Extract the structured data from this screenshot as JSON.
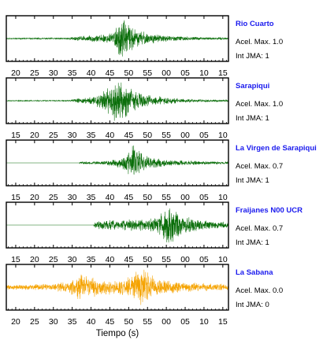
{
  "chart_data": {
    "type": "line",
    "xlabel": "Tiempo (s)",
    "colors": {
      "station_name": "#1a1aee",
      "trace_normal": "#0a6e0a",
      "trace_highlight": "#f5a300",
      "axis": "#000000"
    },
    "panels": [
      {
        "station": "Rio Cuarto",
        "acel_text": "Acel. Max. 1.0",
        "jma_text": "Int JMA: 1",
        "tick_labels": [
          "20",
          "25",
          "30",
          "35",
          "40",
          "45",
          "50",
          "55",
          "00",
          "05",
          "10",
          "15"
        ],
        "tick_seconds": [
          20,
          25,
          30,
          35,
          40,
          45,
          50,
          55,
          60,
          65,
          70,
          75
        ],
        "xlim": [
          17.5,
          76.5
        ],
        "color": "trace_normal",
        "envelope": [
          [
            17.5,
            0.03
          ],
          [
            33,
            0.04
          ],
          [
            37,
            0.12
          ],
          [
            42,
            0.18
          ],
          [
            46,
            0.35
          ],
          [
            47.3,
            0.95
          ],
          [
            48.2,
            1.0
          ],
          [
            49.5,
            0.75
          ],
          [
            52,
            0.45
          ],
          [
            56,
            0.25
          ],
          [
            60,
            0.15
          ],
          [
            66,
            0.09
          ],
          [
            76.5,
            0.05
          ]
        ],
        "seed": 11
      },
      {
        "station": "Sarapiqui",
        "acel_text": "Acel. Max. 1.0",
        "jma_text": "Int JMA: 1",
        "tick_labels": [
          "15",
          "20",
          "25",
          "30",
          "35",
          "40",
          "45",
          "50",
          "55",
          "00",
          "05",
          "10"
        ],
        "tick_seconds": [
          15,
          20,
          25,
          30,
          35,
          40,
          45,
          50,
          55,
          60,
          65,
          70
        ],
        "xlim": [
          12.5,
          71.5
        ],
        "color": "trace_normal",
        "envelope": [
          [
            12.5,
            0.02
          ],
          [
            29,
            0.03
          ],
          [
            31,
            0.1
          ],
          [
            35,
            0.2
          ],
          [
            39,
            0.55
          ],
          [
            41,
            1.0
          ],
          [
            43.5,
            0.95
          ],
          [
            46,
            0.55
          ],
          [
            50,
            0.3
          ],
          [
            55,
            0.18
          ],
          [
            60,
            0.1
          ],
          [
            66,
            0.07
          ],
          [
            71.5,
            0.05
          ]
        ],
        "seed": 23
      },
      {
        "station": "La Virgen de Sarapiqui",
        "acel_text": "Acel. Max. 0.7",
        "jma_text": "Int JMA: 1",
        "tick_labels": [
          "15",
          "20",
          "25",
          "30",
          "35",
          "40",
          "45",
          "50",
          "55",
          "00",
          "05",
          "10"
        ],
        "tick_seconds": [
          15,
          20,
          25,
          30,
          35,
          40,
          45,
          50,
          55,
          60,
          65,
          70
        ],
        "xlim": [
          12.5,
          71.5
        ],
        "color": "trace_normal",
        "envelope": [
          [
            12.5,
            0.0
          ],
          [
            31.8,
            0.0
          ],
          [
            32.2,
            0.06
          ],
          [
            38,
            0.1
          ],
          [
            43,
            0.25
          ],
          [
            45,
            0.6
          ],
          [
            46,
            1.0
          ],
          [
            47.5,
            0.7
          ],
          [
            50,
            0.35
          ],
          [
            54,
            0.2
          ],
          [
            60,
            0.12
          ],
          [
            66,
            0.08
          ],
          [
            71.5,
            0.06
          ]
        ],
        "seed": 37
      },
      {
        "station": "Fraijanes N00 UCR",
        "acel_text": "Acel. Max. 0.7",
        "jma_text": "Int JMA: 1",
        "tick_labels": [
          "15",
          "20",
          "25",
          "30",
          "35",
          "40",
          "45",
          "50",
          "55",
          "00",
          "05",
          "10"
        ],
        "tick_seconds": [
          15,
          20,
          25,
          30,
          35,
          40,
          45,
          50,
          55,
          60,
          65,
          70
        ],
        "xlim": [
          12.5,
          71.5
        ],
        "color": "trace_normal",
        "envelope": [
          [
            12.5,
            0.0
          ],
          [
            35.6,
            0.0
          ],
          [
            36,
            0.18
          ],
          [
            40,
            0.25
          ],
          [
            45,
            0.28
          ],
          [
            50,
            0.32
          ],
          [
            54,
            0.6
          ],
          [
            55.5,
            1.0
          ],
          [
            57,
            0.8
          ],
          [
            59.5,
            0.5
          ],
          [
            63,
            0.3
          ],
          [
            67,
            0.2
          ],
          [
            71.5,
            0.15
          ]
        ],
        "seed": 53
      },
      {
        "station": "La Sabana",
        "acel_text": "Acel. Max. 0.0",
        "jma_text": "Int JMA: 0",
        "tick_labels": [
          "20",
          "25",
          "30",
          "35",
          "40",
          "45",
          "50",
          "55",
          "00",
          "05",
          "10",
          "15"
        ],
        "tick_seconds": [
          20,
          25,
          30,
          35,
          40,
          45,
          50,
          55,
          60,
          65,
          70,
          75
        ],
        "xlim": [
          17.5,
          76.5
        ],
        "color": "trace_highlight",
        "envelope": [
          [
            17.5,
            0.12
          ],
          [
            30,
            0.18
          ],
          [
            34,
            0.3
          ],
          [
            37,
            0.75
          ],
          [
            39,
            0.6
          ],
          [
            42,
            0.4
          ],
          [
            47,
            0.35
          ],
          [
            51,
            0.55
          ],
          [
            53,
            0.95
          ],
          [
            55,
            0.75
          ],
          [
            58,
            0.45
          ],
          [
            62,
            0.3
          ],
          [
            68,
            0.22
          ],
          [
            76.5,
            0.15
          ]
        ],
        "seed": 71
      }
    ]
  }
}
